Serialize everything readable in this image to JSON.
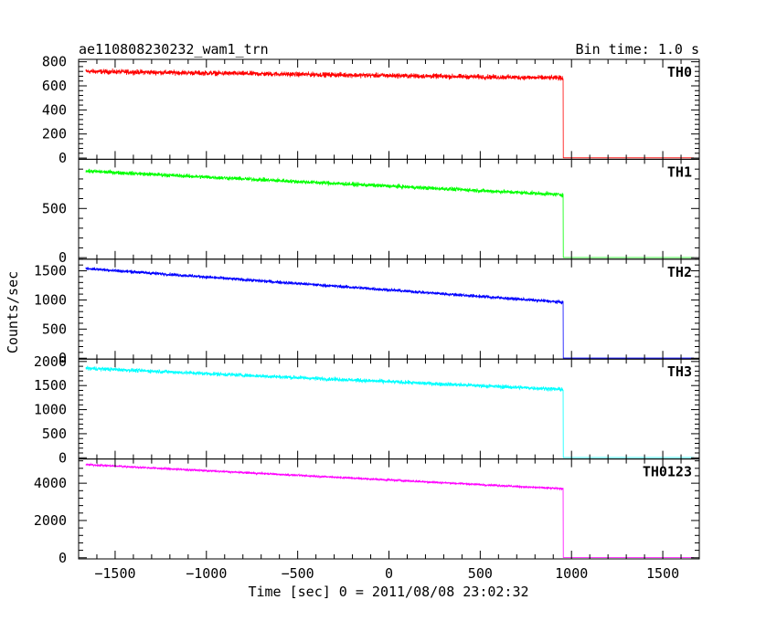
{
  "header": {
    "title": "ae110808230232_wam1_trn",
    "bin_time": "Bin time: 1.0 s"
  },
  "chart_data": {
    "type": "line",
    "xlabel": "Time [sec] 0 = 2011/08/08 23:02:32",
    "ylabel": "Counts/sec",
    "xlim": [
      -1700,
      1700
    ],
    "xticks": [
      -1500,
      -1000,
      -500,
      0,
      500,
      1000,
      1500
    ],
    "xtick_labels": [
      "−1500",
      "−1000",
      "−500",
      "0",
      "500",
      "1000",
      "1500"
    ],
    "drop_time": 955,
    "data_start": -1660,
    "data_end": 1670,
    "panels": [
      {
        "name": "TH0",
        "color": "#ff0000",
        "ylim": [
          -10,
          820
        ],
        "yticks": [
          0,
          200,
          400,
          600,
          800
        ],
        "ytick_labels": [
          "0",
          "200",
          "400",
          "600",
          "800"
        ],
        "level_start": 720,
        "level_end": 665,
        "noise": 30,
        "level_after": 2
      },
      {
        "name": "TH1",
        "color": "#00ff00",
        "ylim": [
          -15,
          1000
        ],
        "yticks": [
          0,
          500
        ],
        "ytick_labels": [
          "0",
          "500"
        ],
        "level_start": 880,
        "level_end": 640,
        "noise": 30,
        "level_after": 2
      },
      {
        "name": "TH2",
        "color": "#0000ff",
        "ylim": [
          -15,
          1700
        ],
        "yticks": [
          0,
          500,
          1000,
          1500
        ],
        "ytick_labels": [
          "0",
          "500",
          "1000",
          "1500"
        ],
        "level_start": 1540,
        "level_end": 960,
        "noise": 40,
        "level_after": 3
      },
      {
        "name": "TH3",
        "color": "#00ffff",
        "ylim": [
          -25,
          2050
        ],
        "yticks": [
          0,
          500,
          1000,
          1500,
          2000
        ],
        "ytick_labels": [
          "0",
          "500",
          "1000",
          "1500",
          "2000"
        ],
        "level_start": 1860,
        "level_end": 1420,
        "noise": 60,
        "level_after": 5
      },
      {
        "name": "TH0123",
        "color": "#ff00ff",
        "ylim": [
          -60,
          5300
        ],
        "yticks": [
          0,
          2000,
          4000
        ],
        "ytick_labels": [
          "0",
          "2000",
          "4000"
        ],
        "level_start": 5000,
        "level_end": 3700,
        "noise": 80,
        "level_after": 12
      }
    ]
  }
}
